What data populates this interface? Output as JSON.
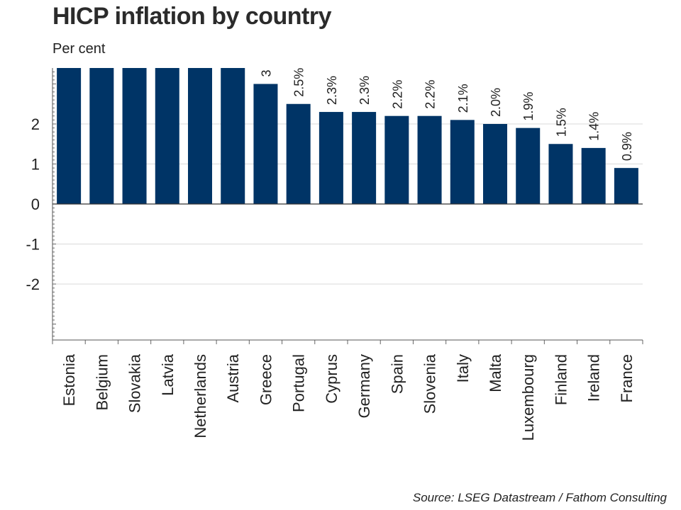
{
  "header": {
    "title": "HICP inflation by country",
    "subtitle": "Per cent"
  },
  "footer": {
    "source": "Source: LSEG Datastream / Fathom Consulting"
  },
  "chart_data": {
    "type": "bar",
    "title": "HICP inflation by country",
    "ylabel": "Per cent",
    "categories": [
      "Estonia",
      "Belgium",
      "Slovakia",
      "Latvia",
      "Netherlands",
      "Austria",
      "Greece",
      "Portugal",
      "Cyprus",
      "Germany",
      "Spain",
      "Slovenia",
      "Italy",
      "Malta",
      "Luxembourg",
      "Finland",
      "Ireland",
      "France"
    ],
    "values": [
      3.4,
      3.4,
      3.4,
      3.4,
      3.4,
      3.4,
      3.0,
      2.5,
      2.3,
      2.3,
      2.2,
      2.2,
      2.1,
      2.0,
      1.9,
      1.5,
      1.4,
      0.9
    ],
    "data_labels": [
      "",
      "",
      "",
      "",
      "",
      "",
      "3",
      "2.5%",
      "2.3%",
      "2.3%",
      "2.2%",
      "2.2%",
      "2.1%",
      "2.0%",
      "1.9%",
      "1.5%",
      "1.4%",
      "0.9%"
    ],
    "yticks": [
      -2,
      -1,
      0,
      1,
      2
    ],
    "ylim": [
      -3.4,
      3.4
    ],
    "grid": true,
    "bar_color": "#003466"
  }
}
